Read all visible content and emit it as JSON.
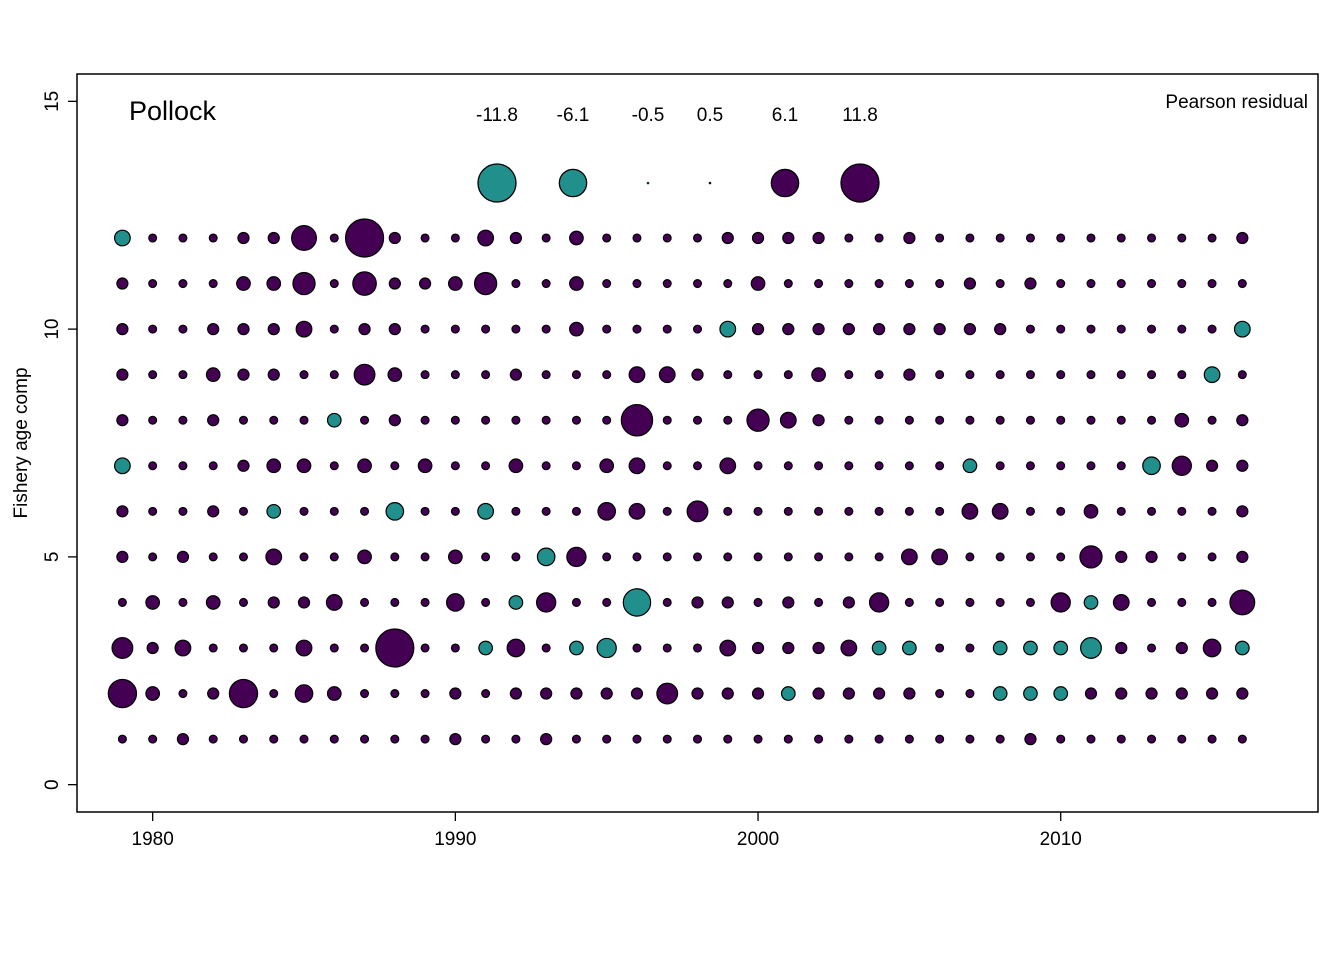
{
  "chart_data": {
    "type": "scatter",
    "subtype": "bubble",
    "title": "Pollock",
    "ylabel": "Fishery age comp",
    "xlabel": "",
    "xlim": [
      1977.5,
      2018.5
    ],
    "ylim": [
      -0.6,
      15.6
    ],
    "xticks": [
      1980,
      1990,
      2000,
      2010
    ],
    "yticks": [
      0,
      5,
      10,
      15
    ],
    "grid": false,
    "colors": {
      "positive": "#440154",
      "negative": "#21908C",
      "stroke": "#000000"
    },
    "legend": {
      "title": "Pearson residual",
      "position": "top-right",
      "values": [
        -11.8,
        -6.1,
        -0.5,
        0.5,
        6.1,
        11.8
      ],
      "labels": [
        "-11.8",
        "-6.1",
        "-0.5",
        "0.5",
        "6.1",
        "11.8"
      ]
    },
    "x": [
      1979,
      1980,
      1981,
      1982,
      1983,
      1984,
      1985,
      1986,
      1987,
      1988,
      1989,
      1990,
      1991,
      1992,
      1993,
      1994,
      1995,
      1996,
      1997,
      1998,
      1999,
      2000,
      2001,
      2002,
      2003,
      2004,
      2005,
      2006,
      2007,
      2008,
      2009,
      2010,
      2011,
      2012,
      2013,
      2014,
      2015,
      2016
    ],
    "rows": [
      {
        "age": 1,
        "residuals": [
          0.5,
          0.5,
          1,
          0.5,
          0.5,
          0.5,
          0.5,
          0.5,
          0.5,
          0.5,
          0.5,
          1,
          0.5,
          0.5,
          1,
          0.5,
          0.5,
          0.5,
          0.5,
          0.5,
          0.5,
          0.5,
          0.5,
          0.5,
          0.5,
          0.5,
          0.5,
          0.5,
          0.5,
          0.5,
          1,
          0.5,
          0.5,
          0.5,
          0.5,
          0.5,
          0.5,
          0.5
        ]
      },
      {
        "age": 2,
        "residuals": [
          6.5,
          1.5,
          0.5,
          1,
          6.5,
          0.5,
          2.5,
          1.5,
          0.5,
          0.5,
          0.5,
          1,
          0.5,
          1,
          1,
          1,
          1,
          1,
          3.5,
          1,
          1,
          1,
          -1.5,
          1,
          1,
          1,
          1,
          0.5,
          0.5,
          -1.5,
          -1.5,
          -1.5,
          1,
          1,
          1,
          1,
          1,
          1
        ]
      },
      {
        "age": 3,
        "residuals": [
          3.5,
          1,
          2,
          0.5,
          0.5,
          0.5,
          2,
          0.5,
          0.5,
          11.8,
          0.5,
          0.5,
          -1.5,
          2.5,
          0.5,
          -1.5,
          -3,
          0.5,
          0.5,
          0.5,
          2,
          1,
          1,
          1,
          2,
          -1.5,
          -1.5,
          0.5,
          0.5,
          -1.5,
          -1.5,
          -1.5,
          -3.5,
          1,
          0.5,
          1,
          2.5,
          -1.5
        ]
      },
      {
        "age": 4,
        "residuals": [
          0.5,
          1.5,
          0.5,
          1.5,
          0.5,
          1,
          1,
          2,
          0.5,
          0.5,
          0.5,
          2.5,
          0.5,
          -1.5,
          3,
          0.5,
          0.5,
          -6.1,
          0.5,
          1,
          1,
          0.5,
          1,
          0.5,
          1,
          3,
          0.5,
          0.5,
          0.5,
          0.5,
          0.5,
          3,
          -1.5,
          2,
          0.5,
          0.5,
          0.5,
          5
        ]
      },
      {
        "age": 5,
        "residuals": [
          1,
          0.5,
          1,
          0.5,
          0.5,
          2,
          0.5,
          0.5,
          1.5,
          0.5,
          0.5,
          1.5,
          0.5,
          0.5,
          -2.5,
          3,
          0.5,
          0.5,
          0.5,
          0.5,
          0.5,
          0.5,
          0.5,
          0.5,
          0.5,
          0.5,
          2,
          2,
          0.5,
          0.5,
          0.5,
          0.5,
          4,
          1,
          1,
          0.5,
          0.5,
          1
        ]
      },
      {
        "age": 6,
        "residuals": [
          1,
          0.5,
          0.5,
          1,
          0.5,
          -1.5,
          0.5,
          0.5,
          0.5,
          -2.5,
          0.5,
          0.5,
          -2,
          0.5,
          0.5,
          0.5,
          2.5,
          2,
          0.5,
          3.5,
          0.5,
          0.5,
          0.5,
          0.5,
          0.5,
          0.5,
          0.5,
          0.5,
          2,
          2,
          0.5,
          0.5,
          1.5,
          0.5,
          0.5,
          0.5,
          0.5,
          1
        ]
      },
      {
        "age": 7,
        "residuals": [
          -2,
          0.5,
          0.5,
          0.5,
          1,
          1.5,
          1.5,
          0.5,
          1.5,
          0.5,
          1.5,
          0.5,
          0.5,
          1.5,
          0.5,
          0.5,
          1.5,
          2,
          0.5,
          0.5,
          2,
          0.5,
          0.5,
          0.5,
          0.5,
          0.5,
          0.5,
          0.5,
          -1.5,
          0.5,
          0.5,
          0.5,
          0.5,
          0.5,
          -2.5,
          3,
          1,
          1
        ]
      },
      {
        "age": 8,
        "residuals": [
          1,
          0.5,
          0.5,
          1,
          0.5,
          0.5,
          0.5,
          -1.5,
          0.5,
          1,
          0.5,
          0.5,
          0.5,
          0.5,
          0.5,
          0.5,
          0.5,
          8,
          0.5,
          0.5,
          0.5,
          4,
          2,
          1,
          0.5,
          0.5,
          0.5,
          0.5,
          0.5,
          0.5,
          0.5,
          0.5,
          0.5,
          0.5,
          0.5,
          1.5,
          0.5,
          1
        ]
      },
      {
        "age": 9,
        "residuals": [
          1,
          0.5,
          0.5,
          1.5,
          1,
          1,
          0.5,
          0.5,
          3.5,
          1.5,
          0.5,
          0.5,
          0.5,
          1,
          0.5,
          0.5,
          0.5,
          2,
          2,
          1,
          0.5,
          0.5,
          0.5,
          1.5,
          0.5,
          0.5,
          1,
          0.5,
          0.5,
          0.5,
          0.5,
          0.5,
          0.5,
          0.5,
          0.5,
          0.5,
          -2,
          0.5
        ]
      },
      {
        "age": 10,
        "residuals": [
          1,
          0.5,
          0.5,
          1,
          1,
          1,
          2,
          0.5,
          1,
          1,
          0.5,
          0.5,
          0.5,
          0.5,
          0.5,
          1.5,
          0.5,
          0.5,
          0.5,
          0.5,
          -2,
          1,
          1,
          1,
          1,
          1,
          1,
          1,
          1,
          1,
          0.5,
          0.5,
          0.5,
          0.5,
          0.5,
          0.5,
          0.5,
          -2
        ]
      },
      {
        "age": 11,
        "residuals": [
          1,
          0.5,
          0.5,
          0.5,
          1.5,
          1.5,
          4,
          0.5,
          4.5,
          1,
          1,
          1.5,
          4,
          0.5,
          0.5,
          1.5,
          0.5,
          0.5,
          0.5,
          0.5,
          0.5,
          1.5,
          0.5,
          0.5,
          0.5,
          0.5,
          0.5,
          0.5,
          1,
          0.5,
          1,
          0.5,
          0.5,
          0.5,
          0.5,
          0.5,
          0.5,
          0.5
        ]
      },
      {
        "age": 12,
        "residuals": [
          -2,
          0.5,
          0.5,
          0.5,
          1,
          1,
          5,
          0.5,
          11.8,
          1,
          0.5,
          0.5,
          2,
          1,
          0.5,
          1.5,
          0.5,
          0.5,
          0.5,
          0.5,
          1,
          1,
          1,
          1,
          0.5,
          0.5,
          1,
          0.5,
          0.5,
          0.5,
          0.5,
          0.5,
          0.5,
          0.5,
          0.5,
          0.5,
          0.5,
          1
        ]
      }
    ]
  }
}
